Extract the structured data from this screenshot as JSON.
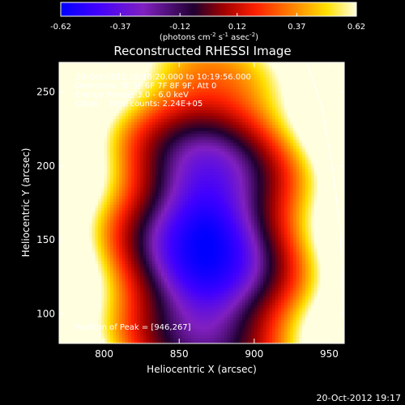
{
  "chart_data": {
    "type": "heatmap",
    "title": "Reconstructed RHESSI Image",
    "xlabel": "Heliocentric X (arcsec)",
    "ylabel": "Heliocentric Y (arcsec)",
    "xlim": [
      770,
      960
    ],
    "ylim": [
      80,
      270
    ],
    "xticks": [
      "800",
      "850",
      "900",
      "950"
    ],
    "xtick_values": [
      800,
      850,
      900,
      950
    ],
    "yticks": [
      "100",
      "150",
      "200",
      "250"
    ],
    "ytick_values": [
      100,
      150,
      200,
      250
    ],
    "grid": false,
    "info_lines": [
      "20-Oct-2012 10:16:20.000 to 10:19:56.000",
      "Detectors: 3F 5F 6F 7F 8F 9F, Att 0",
      "Energy Range: 3.0 - 6.0 keV",
      "Clean    Total counts: 2.24E+05"
    ],
    "peak_text": "Position of Peak = [946,267]",
    "colorbar": {
      "range": [
        -0.62,
        0.62
      ],
      "tick_labels": [
        "-0.62",
        "-0.37",
        "-0.12",
        "0.12",
        "0.37",
        "0.62"
      ],
      "tick_values": [
        -0.62,
        -0.37,
        -0.12,
        0.12,
        0.37,
        0.62
      ],
      "unit_main": "(photons cm",
      "unit_exp1": "-2",
      "unit_mid": " s",
      "unit_exp2": "-1",
      "unit_end": " asec",
      "unit_exp3": "-2",
      "unit_close": ")"
    },
    "colors": {
      "colormap": [
        "#0000ff",
        "#4000ff",
        "#8020c0",
        "#200030",
        "#a00000",
        "#ff2000",
        "#ff8000",
        "#ffe000",
        "#ffffe0"
      ]
    },
    "intensity_model": {
      "center_x": 868,
      "center_y": 148,
      "radius_x": 75,
      "radius_y": 140,
      "min_value": -0.62,
      "max_value": 0.62
    },
    "limb_arc": [
      [
        935,
        270
      ],
      [
        945,
        240
      ],
      [
        952,
        200
      ],
      [
        957,
        160
      ],
      [
        959,
        120
      ],
      [
        960,
        84
      ]
    ]
  },
  "footer": {
    "timestamp": "20-Oct-2012 19:17"
  }
}
